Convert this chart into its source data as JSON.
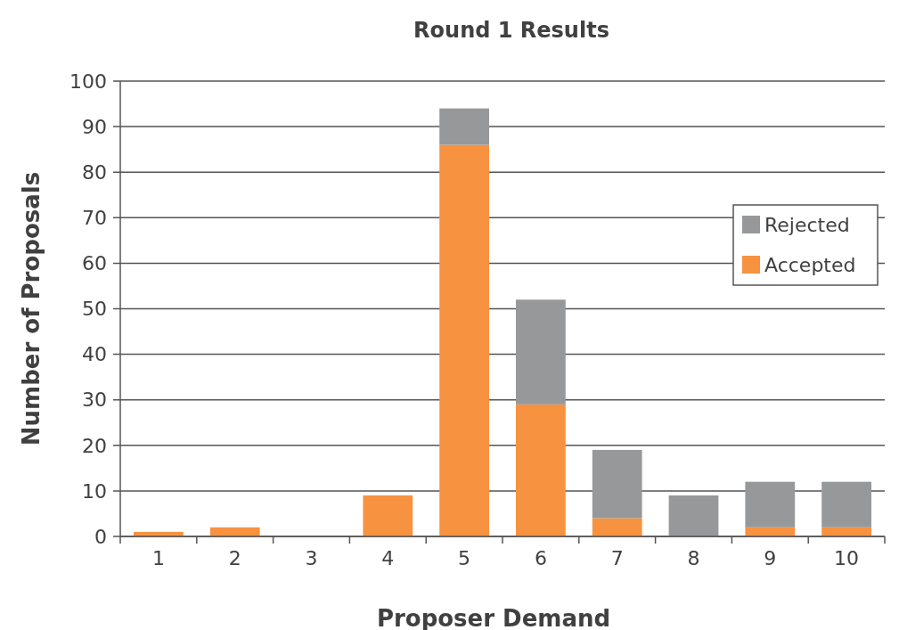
{
  "chart_data": {
    "type": "bar",
    "title": "Round 1 Results",
    "xlabel": "Proposer Demand",
    "ylabel": "Number of Proposals",
    "categories": [
      "1",
      "2",
      "3",
      "4",
      "5",
      "6",
      "7",
      "8",
      "9",
      "10"
    ],
    "stacked": true,
    "series": [
      {
        "name": "Accepted",
        "color": "#f79240",
        "values": [
          1,
          2,
          0,
          9,
          86,
          29,
          4,
          0,
          2,
          2
        ]
      },
      {
        "name": "Rejected",
        "color": "#97989a",
        "values": [
          0,
          0,
          0,
          0,
          8,
          23,
          15,
          9,
          10,
          10
        ]
      }
    ],
    "ylim": [
      0,
      100
    ],
    "yticks": [
      0,
      10,
      20,
      30,
      40,
      50,
      60,
      70,
      80,
      90,
      100
    ],
    "grid": "y",
    "legend": "right"
  }
}
